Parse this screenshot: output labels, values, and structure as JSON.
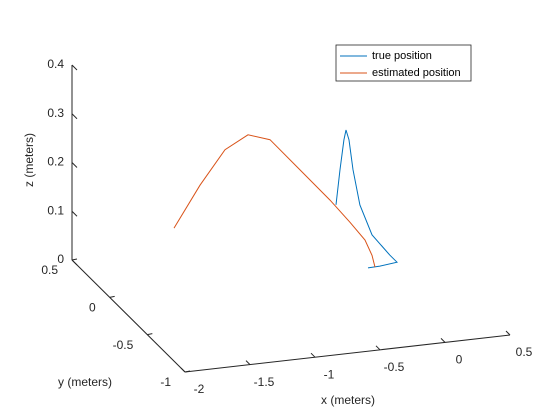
{
  "chart_data": {
    "type": "line3d",
    "xlabel": "x (meters)",
    "ylabel": "y (meters)",
    "zlabel": "z (meters)",
    "xlim": [
      -2,
      0.5
    ],
    "ylim": [
      -1,
      0.5
    ],
    "zlim": [
      0,
      0.4
    ],
    "xticks": [
      -2,
      -1.5,
      -1,
      -0.5,
      0,
      0.5
    ],
    "yticks": [
      -1,
      -0.5,
      0,
      0.5
    ],
    "zticks": [
      0,
      0.1,
      0.2,
      0.3,
      0.4
    ],
    "legend": "northeast",
    "series": [
      {
        "name": "true position",
        "color": "#0072bd",
        "x": [
          -0.259,
          -0.228,
          -0.198,
          -0.182,
          -0.159,
          -0.128,
          -0.075,
          0.018,
          0.156,
          0.21,
          0.079,
          -0.013
        ],
        "y": [
          0,
          0,
          0,
          0,
          0,
          0,
          0,
          0,
          0,
          0,
          0,
          0
        ],
        "z": [
          0.137,
          0.208,
          0.268,
          0.288,
          0.267,
          0.205,
          0.131,
          0.067,
          0.021,
          0.005,
          0.001,
          0
        ]
      },
      {
        "name": "estimated position",
        "color": "#d95319",
        "x": [
          -1.505,
          -1.305,
          -1.113,
          -0.936,
          -0.767,
          -0.536,
          -0.305,
          -0.152,
          -0.036,
          0.018,
          0.041
        ],
        "y": [
          0,
          0,
          0,
          0,
          0,
          0,
          0,
          0,
          0,
          0,
          0
        ],
        "z": [
          0.127,
          0.209,
          0.276,
          0.301,
          0.286,
          0.217,
          0.148,
          0.098,
          0.058,
          0.025,
          0
        ]
      }
    ]
  }
}
